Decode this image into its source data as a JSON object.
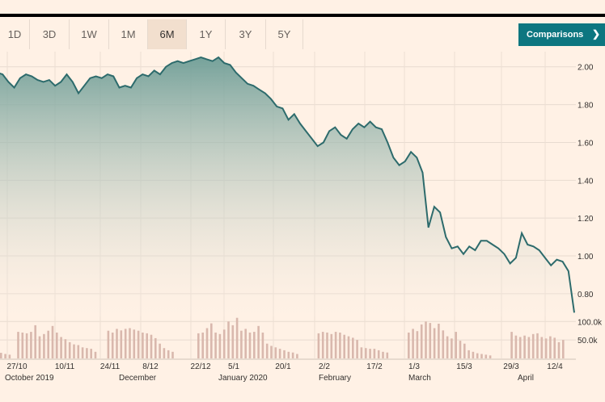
{
  "toolbar": {
    "ranges": [
      "1D",
      "3D",
      "1W",
      "1M",
      "6M",
      "1Y",
      "3Y",
      "5Y"
    ],
    "active": "6M",
    "comparisons_label": "Comparisons",
    "comparisons_icon": "chevron-right-icon"
  },
  "colors": {
    "line": "#2d6b6c",
    "fill_top": "#6f9e97",
    "fill_bottom": "#fff1e5",
    "volume": "#d9b8ad",
    "accent_button": "#0d7680",
    "active_tab": "#f2dfce"
  },
  "chart_data": [
    {
      "type": "area",
      "ylim": [
        0.68,
        2.08
      ],
      "yticks": [
        "2.00",
        "1.80",
        "1.60",
        "1.40",
        "1.20",
        "1.00",
        "0.80"
      ],
      "x_tick_labels": [
        "27/10",
        "10/11",
        "24/11",
        "8/12",
        "22/12",
        "5/1",
        "20/1",
        "2/2",
        "17/2",
        "1/3",
        "15/3",
        "29/3",
        "12/4"
      ],
      "month_labels": [
        "October 2019",
        "December",
        "January 2020",
        "February",
        "March",
        "April"
      ],
      "values": [
        1.97,
        1.96,
        1.92,
        1.89,
        1.94,
        1.96,
        1.95,
        1.93,
        1.92,
        1.93,
        1.9,
        1.92,
        1.96,
        1.92,
        1.86,
        1.9,
        1.94,
        1.95,
        1.94,
        1.96,
        1.95,
        1.89,
        1.9,
        1.89,
        1.94,
        1.96,
        1.95,
        1.98,
        1.96,
        2.0,
        2.02,
        2.03,
        2.02,
        2.03,
        2.04,
        2.05,
        2.04,
        2.03,
        2.05,
        2.02,
        2.01,
        1.97,
        1.94,
        1.91,
        1.9,
        1.88,
        1.86,
        1.83,
        1.79,
        1.78,
        1.72,
        1.75,
        1.7,
        1.66,
        1.62,
        1.58,
        1.6,
        1.66,
        1.68,
        1.64,
        1.62,
        1.67,
        1.7,
        1.68,
        1.71,
        1.68,
        1.67,
        1.6,
        1.52,
        1.48,
        1.5,
        1.55,
        1.52,
        1.44,
        1.15,
        1.26,
        1.23,
        1.1,
        1.04,
        1.05,
        1.01,
        1.05,
        1.03,
        1.08,
        1.08,
        1.06,
        1.04,
        1.01,
        0.96,
        0.99,
        1.12,
        1.06,
        1.05,
        1.03,
        0.99,
        0.95,
        0.98,
        0.97,
        0.92,
        0.7
      ],
      "series_color": "#2d6b6c"
    },
    {
      "type": "bar",
      "ylim": [
        0,
        140
      ],
      "yticks": [
        "100.0k",
        "50.0k"
      ],
      "values": [
        15,
        12,
        10,
        0,
        72,
        70,
        68,
        72,
        90,
        60,
        66,
        75,
        88,
        70,
        58,
        52,
        44,
        38,
        36,
        30,
        28,
        26,
        18,
        0,
        0,
        75,
        70,
        80,
        76,
        80,
        82,
        78,
        75,
        70,
        68,
        64,
        55,
        40,
        28,
        22,
        18,
        0,
        0,
        0,
        0,
        0,
        68,
        70,
        82,
        95,
        70,
        66,
        78,
        100,
        90,
        110,
        75,
        80,
        70,
        72,
        88,
        70,
        40,
        34,
        30,
        26,
        22,
        18,
        16,
        12,
        0,
        0,
        0,
        0,
        68,
        72,
        70,
        66,
        72,
        70,
        64,
        60,
        56,
        50,
        30,
        28,
        26,
        26,
        22,
        18,
        16,
        0,
        0,
        0,
        0,
        70,
        80,
        74,
        92,
        100,
        96,
        82,
        94,
        76,
        60,
        54,
        72,
        48,
        40,
        22,
        18,
        14,
        12,
        10,
        8,
        0,
        0,
        0,
        0,
        72,
        62,
        58,
        62,
        58,
        66,
        68,
        58,
        54,
        60,
        56,
        44,
        50
      ]
    }
  ]
}
